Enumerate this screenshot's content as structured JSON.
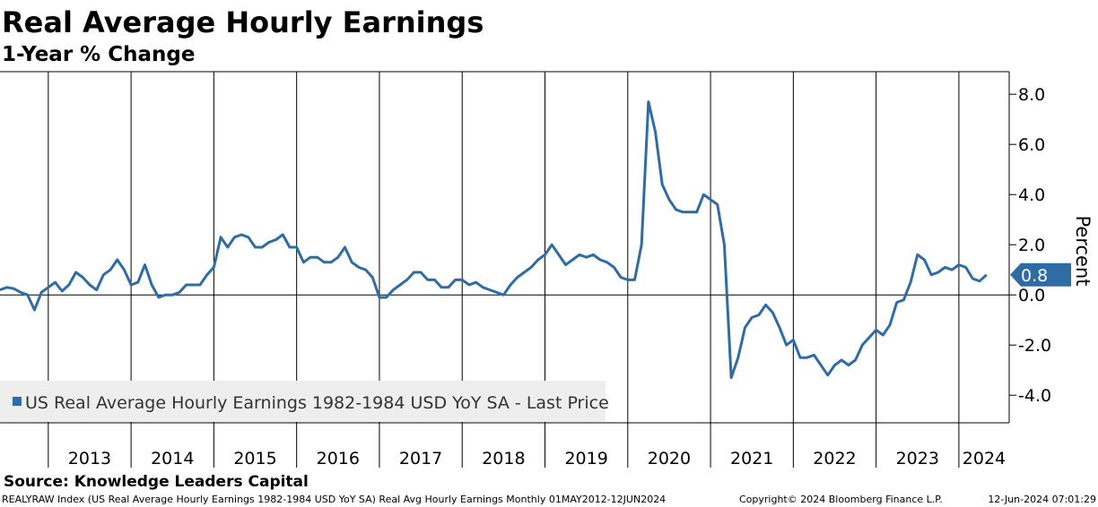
{
  "chart_data": {
    "type": "line",
    "title": "Real Average Hourly Earnings",
    "subtitle": "1-Year % Change",
    "y_label": "Percent",
    "source": "Source: Knowledge Leaders Capital",
    "footer": [
      "REALYRAW Index (US Real Average Hourly Earnings 1982-1984 USD YoY SA) Real Avg Hourly Earnings  Monthly 01MAY2012-12JUN2024",
      "Copyright© 2024 Bloomberg Finance L.P.",
      "12-Jun-2024 07:01:29"
    ],
    "categories": [
      null,
      null,
      null,
      null,
      null,
      null,
      null,
      "2013",
      null,
      null,
      null,
      null,
      null,
      null,
      null,
      null,
      null,
      null,
      null,
      "2014",
      null,
      null,
      null,
      null,
      null,
      null,
      null,
      null,
      null,
      null,
      null,
      "2015",
      null,
      null,
      null,
      null,
      null,
      null,
      null,
      null,
      null,
      null,
      null,
      "2016",
      null,
      null,
      null,
      null,
      null,
      null,
      null,
      null,
      null,
      null,
      null,
      "2017",
      null,
      null,
      null,
      null,
      null,
      null,
      null,
      null,
      null,
      null,
      null,
      "2018",
      null,
      null,
      null,
      null,
      null,
      null,
      null,
      null,
      null,
      null,
      null,
      "2019",
      null,
      null,
      null,
      null,
      null,
      null,
      null,
      null,
      null,
      null,
      null,
      "2020",
      null,
      null,
      null,
      null,
      null,
      null,
      null,
      null,
      null,
      null,
      null,
      "2021",
      null,
      null,
      null,
      null,
      null,
      null,
      null,
      null,
      null,
      null,
      null,
      "2022",
      null,
      null,
      null,
      null,
      null,
      null,
      null,
      null,
      null,
      null,
      null,
      "2023",
      null,
      null,
      null,
      null,
      null,
      null,
      null,
      null,
      null,
      null,
      null,
      "2024",
      null,
      null,
      null,
      null
    ],
    "series": [
      {
        "name": "US Real Average Hourly Earnings 1982-1984 USD YoY SA - Last Price",
        "color": "#2f6ca5",
        "values": [
          0.2,
          0.3,
          0.25,
          0.1,
          0.0,
          -0.6,
          0.1,
          0.3,
          0.5,
          0.15,
          0.4,
          0.9,
          0.7,
          0.4,
          0.2,
          0.8,
          1.0,
          1.4,
          1.0,
          0.4,
          0.5,
          1.2,
          0.4,
          -0.1,
          0.0,
          0.0,
          0.1,
          0.4,
          0.4,
          0.4,
          0.8,
          1.1,
          2.3,
          1.9,
          2.3,
          2.4,
          2.3,
          1.9,
          1.9,
          2.1,
          2.2,
          2.4,
          1.9,
          1.9,
          1.3,
          1.5,
          1.5,
          1.3,
          1.3,
          1.5,
          1.9,
          1.3,
          1.1,
          1.0,
          0.7,
          -0.1,
          -0.1,
          0.2,
          0.4,
          0.6,
          0.9,
          0.9,
          0.6,
          0.6,
          0.3,
          0.3,
          0.6,
          0.6,
          0.4,
          0.5,
          0.3,
          0.2,
          0.1,
          0.0,
          0.4,
          0.7,
          0.9,
          1.1,
          1.4,
          1.6,
          2.0,
          1.6,
          1.2,
          1.4,
          1.6,
          1.5,
          1.6,
          1.4,
          1.3,
          1.1,
          0.7,
          0.6,
          0.6,
          2.0,
          7.7,
          6.5,
          4.4,
          3.8,
          3.4,
          3.3,
          3.3,
          3.3,
          4.0,
          3.8,
          3.6,
          2.0,
          -3.3,
          -2.5,
          -1.3,
          -0.9,
          -0.8,
          -0.4,
          -0.7,
          -1.3,
          -2.0,
          -1.8,
          -2.5,
          -2.5,
          -2.4,
          -2.8,
          -3.2,
          -2.8,
          -2.6,
          -2.8,
          -2.6,
          -2.0,
          -1.7,
          -1.4,
          -1.6,
          -1.2,
          -0.3,
          -0.2,
          0.5,
          1.6,
          1.4,
          0.8,
          0.9,
          1.1,
          1.0,
          1.2,
          1.1,
          0.65,
          0.55,
          0.8
        ]
      }
    ],
    "ylim": [
      -5.1,
      8.9
    ],
    "yticks": [
      {
        "value": -4,
        "label": "-4.0"
      },
      {
        "value": -2,
        "label": "-2.0"
      },
      {
        "value": 0,
        "label": "0.0"
      },
      {
        "value": 2,
        "label": "2.0"
      },
      {
        "value": 4,
        "label": "4.0"
      },
      {
        "value": 6,
        "label": "6.0"
      },
      {
        "value": 8,
        "label": "8.0"
      }
    ],
    "legend": "bottom-left"
  }
}
